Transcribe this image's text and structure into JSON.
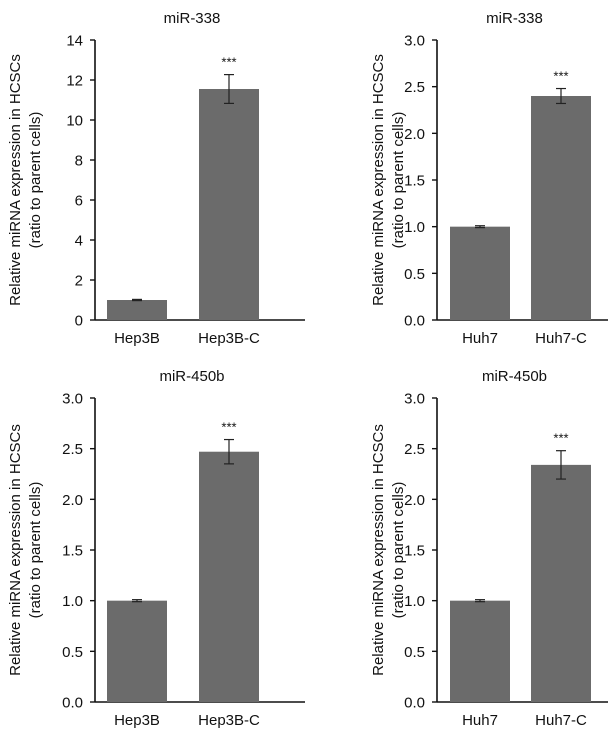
{
  "chart_data": [
    {
      "type": "bar",
      "title": "miR-338",
      "ylabel": [
        "Relative miRNA expression in HCSCs",
        "(ratio to parent cells)"
      ],
      "categories": [
        "Hep3B",
        "Hep3B-C"
      ],
      "values": [
        1.0,
        11.55
      ],
      "error": [
        0.03,
        0.72
      ],
      "significance": [
        "",
        "***"
      ],
      "ylim": [
        0,
        14
      ],
      "yticks": [
        "0",
        "2",
        "4",
        "6",
        "8",
        "10",
        "12",
        "14"
      ],
      "bar_color": "#6b6b6b"
    },
    {
      "type": "bar",
      "title": "miR-338",
      "ylabel": [
        "Relative miRNA expression in HCSCs",
        "(ratio to parent cells)"
      ],
      "categories": [
        "Huh7",
        "Huh7-C"
      ],
      "values": [
        1.0,
        2.4
      ],
      "error": [
        0.01,
        0.08
      ],
      "significance": [
        "",
        "***"
      ],
      "ylim": [
        0,
        3.0
      ],
      "yticks": [
        "0.0",
        "0.5",
        "1.0",
        "1.5",
        "2.0",
        "2.5",
        "3.0"
      ],
      "bar_color": "#6b6b6b"
    },
    {
      "type": "bar",
      "title": "miR-450b",
      "ylabel": [
        "Relative miRNA expression in HCSCs",
        "(ratio to parent cells)"
      ],
      "categories": [
        "Hep3B",
        "Hep3B-C"
      ],
      "values": [
        1.0,
        2.47
      ],
      "error": [
        0.01,
        0.12
      ],
      "significance": [
        "",
        "***"
      ],
      "ylim": [
        0,
        3.0
      ],
      "yticks": [
        "0.0",
        "0.5",
        "1.0",
        "1.5",
        "2.0",
        "2.5",
        "3.0"
      ],
      "bar_color": "#6b6b6b"
    },
    {
      "type": "bar",
      "title": "miR-450b",
      "ylabel": [
        "Relative miRNA expression in HCSCs",
        "(ratio to parent cells)"
      ],
      "categories": [
        "Huh7",
        "Huh7-C"
      ],
      "values": [
        1.0,
        2.34
      ],
      "error": [
        0.01,
        0.14
      ],
      "significance": [
        "",
        "***"
      ],
      "ylim": [
        0,
        3.0
      ],
      "yticks": [
        "0.0",
        "0.5",
        "1.0",
        "1.5",
        "2.0",
        "2.5",
        "3.0"
      ],
      "bar_color": "#6b6b6b"
    }
  ]
}
